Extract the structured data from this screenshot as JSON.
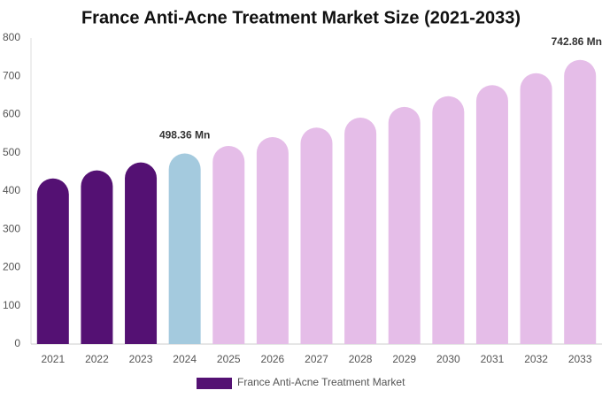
{
  "chart_data": {
    "type": "bar",
    "title": "France Anti-Acne Treatment Market Size (2021-2033)",
    "categories": [
      "2021",
      "2022",
      "2023",
      "2024",
      "2025",
      "2026",
      "2027",
      "2028",
      "2029",
      "2030",
      "2031",
      "2032",
      "2033"
    ],
    "series": [
      {
        "name": "France Anti-Acne Treatment Market",
        "color": "#541173",
        "values": [
          433,
          454,
          475,
          498.36,
          518,
          541,
          566,
          592,
          620,
          648,
          677,
          708,
          742.86
        ],
        "value_labels": [
          null,
          null,
          null,
          "498.36 Mn",
          null,
          null,
          null,
          null,
          null,
          null,
          null,
          null,
          "742.86 Mn"
        ],
        "bar_colors": [
          "#541173",
          "#541173",
          "#541173",
          "#a4cade",
          "#e5bde8",
          "#e5bde8",
          "#e5bde8",
          "#e5bde8",
          "#e5bde8",
          "#e5bde8",
          "#e5bde8",
          "#e5bde8",
          "#e5bde8"
        ]
      }
    ],
    "ylim": [
      0,
      800
    ],
    "yticks": [
      0,
      100,
      200,
      300,
      400,
      500,
      600,
      700,
      800
    ],
    "grid": false,
    "legend": "bottom"
  }
}
